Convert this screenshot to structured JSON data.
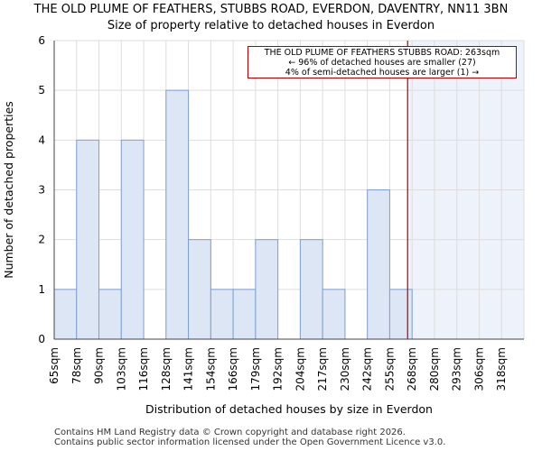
{
  "header": {
    "title": "THE OLD PLUME OF FEATHERS, STUBBS ROAD, EVERDON, DAVENTRY, NN11 3BN",
    "subtitle": "Size of property relative to detached houses in Everdon"
  },
  "annotation": {
    "line1": "THE OLD PLUME OF FEATHERS STUBBS ROAD: 263sqm",
    "line2": "← 96% of detached houses are smaller (27)",
    "line3": "4% of semi-detached houses are larger (1) →"
  },
  "footer": {
    "line1": "Contains HM Land Registry data © Crown copyright and database right 2026.",
    "line2": "Contains public sector information licensed under the Open Government Licence v3.0."
  },
  "colors": {
    "bar_fill": "#dce6f5",
    "bar_stroke": "#7f9fcf",
    "marker": "#b00000",
    "shade": "#eef2fa",
    "grid": "#dddddd"
  },
  "chart_data": {
    "type": "bar",
    "title": "THE OLD PLUME OF FEATHERS, STUBBS ROAD, EVERDON, DAVENTRY, NN11 3BN",
    "subtitle": "Size of property relative to detached houses in Everdon",
    "xlabel": "Distribution of detached houses by size in Everdon",
    "ylabel": "Number of detached properties",
    "categories": [
      "65sqm",
      "78sqm",
      "90sqm",
      "103sqm",
      "116sqm",
      "128sqm",
      "141sqm",
      "154sqm",
      "166sqm",
      "179sqm",
      "192sqm",
      "204sqm",
      "217sqm",
      "230sqm",
      "242sqm",
      "255sqm",
      "268sqm",
      "280sqm",
      "293sqm",
      "306sqm",
      "318sqm"
    ],
    "values": [
      1,
      4,
      1,
      4,
      0,
      5,
      2,
      1,
      1,
      2,
      0,
      2,
      1,
      0,
      3,
      1,
      0,
      0,
      0,
      0,
      0
    ],
    "ylim": [
      0,
      6
    ],
    "yticks": [
      0,
      1,
      2,
      3,
      4,
      5,
      6
    ],
    "marker_value_sqm": 263,
    "marker_position_bin": 15.8,
    "grid": true
  }
}
